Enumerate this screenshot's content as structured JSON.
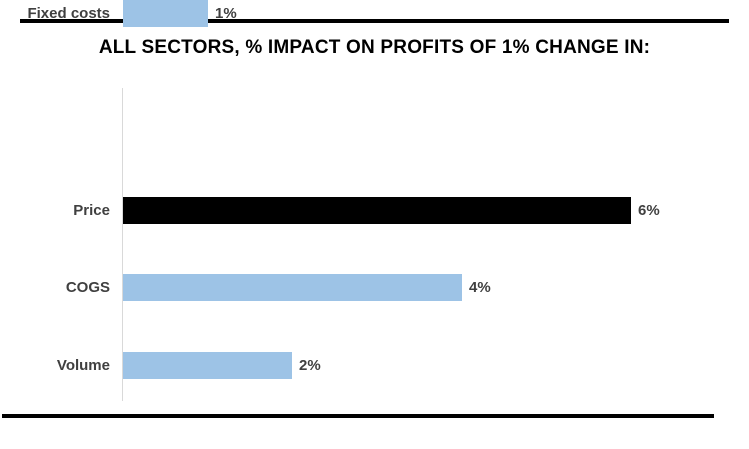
{
  "chart_data": {
    "type": "bar",
    "orientation": "horizontal",
    "title": "ALL SECTORS, % IMPACT ON PROFITS OF 1% CHANGE IN:",
    "categories": [
      "Price",
      "COGS",
      "Volume",
      "Fixed costs"
    ],
    "values": [
      6,
      4,
      2,
      1
    ],
    "value_labels": [
      "6%",
      "4%",
      "2%",
      "1%"
    ],
    "bar_colors": [
      "#000000",
      "#9DC3E6",
      "#9DC3E6",
      "#9DC3E6"
    ],
    "xlabel": "",
    "ylabel": "",
    "xlim": [
      0,
      7
    ],
    "grid": false,
    "legend": false,
    "axis_line_color": "#D9D9D9",
    "label_color": "#404040",
    "title_color": "#000000"
  },
  "frame": {
    "top_rule_color": "#000000",
    "bottom_rule_color": "#000000"
  }
}
